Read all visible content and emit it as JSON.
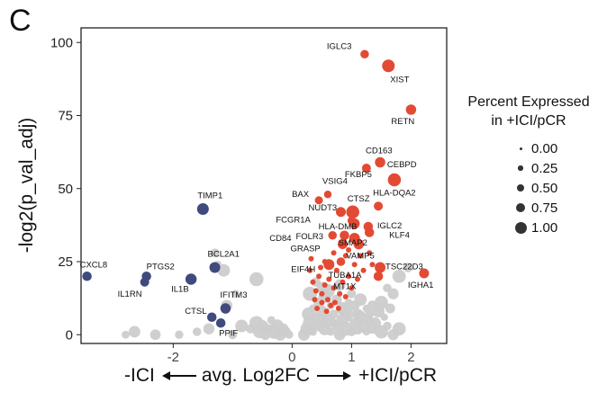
{
  "panel_letter": "C",
  "chart_data": {
    "type": "scatter",
    "title": "",
    "xlabel_left": "-ICI",
    "xlabel_center": "avg. Log2FC",
    "xlabel_right": "+ICI/pCR",
    "ylabel": "-log2(p_val_adj)",
    "xlim": [
      -3.55,
      2.6
    ],
    "ylim": [
      -3,
      105
    ],
    "x_ticks": [
      -2,
      0,
      1,
      2
    ],
    "x_tick_labels": [
      "-2",
      "0",
      "1",
      "2"
    ],
    "y_ticks": [
      0,
      25,
      50,
      75,
      100
    ],
    "y_tick_labels": [
      "0",
      "25",
      "50",
      "75",
      "100"
    ],
    "grid": false,
    "legend_placement": "right",
    "legend": {
      "title_line1": "Percent Expressed",
      "title_line2": "in +ICI/pCR",
      "items": [
        {
          "label": "0.00",
          "size": 0.0
        },
        {
          "label": "0.25",
          "size": 0.25
        },
        {
          "label": "0.50",
          "size": 0.5
        },
        {
          "label": "0.75",
          "size": 0.75
        },
        {
          "label": "1.00",
          "size": 1.0
        }
      ]
    },
    "colors": {
      "up": "#e34a33",
      "down": "#3f4a7e",
      "ns": "#cccccc",
      "text": "#111111"
    },
    "labeled_genes": [
      {
        "gene": "IGLC3",
        "x": 1.22,
        "y": 96,
        "pct": 0.35,
        "group": "up"
      },
      {
        "gene": "XIST",
        "x": 1.62,
        "y": 92,
        "pct": 0.8,
        "group": "up"
      },
      {
        "gene": "RETN",
        "x": 2.0,
        "y": 77,
        "pct": 0.55,
        "group": "up"
      },
      {
        "gene": "CD163",
        "x": 1.48,
        "y": 59,
        "pct": 0.55,
        "group": "up"
      },
      {
        "gene": "FKBP5",
        "x": 1.25,
        "y": 57,
        "pct": 0.4,
        "group": "up"
      },
      {
        "gene": "CEBPD",
        "x": 1.72,
        "y": 53,
        "pct": 0.85,
        "group": "up"
      },
      {
        "gene": "VSIG4",
        "x": 0.6,
        "y": 48,
        "pct": 0.25,
        "group": "up"
      },
      {
        "gene": "BAX",
        "x": 0.45,
        "y": 46,
        "pct": 0.3,
        "group": "up"
      },
      {
        "gene": "HLA-DQA2",
        "x": 1.45,
        "y": 44,
        "pct": 0.4,
        "group": "up"
      },
      {
        "gene": "NUDT3",
        "x": 0.82,
        "y": 42,
        "pct": 0.5,
        "group": "up"
      },
      {
        "gene": "CTSZ",
        "x": 1.02,
        "y": 42,
        "pct": 0.85,
        "group": "up"
      },
      {
        "gene": "FCGR1A",
        "x": 1.0,
        "y": 39,
        "pct": 0.3,
        "group": "up"
      },
      {
        "gene": "HLA-DMB",
        "x": 1.05,
        "y": 38,
        "pct": 0.55,
        "group": "up"
      },
      {
        "gene": "IGLC2",
        "x": 1.28,
        "y": 37,
        "pct": 0.45,
        "group": "up"
      },
      {
        "gene": "CD84",
        "x": 0.68,
        "y": 34,
        "pct": 0.35,
        "group": "up"
      },
      {
        "gene": "FOLR3",
        "x": 0.88,
        "y": 34,
        "pct": 0.45,
        "group": "up"
      },
      {
        "gene": "KLF4",
        "x": 1.3,
        "y": 35,
        "pct": 0.45,
        "group": "up"
      },
      {
        "gene": "SMAP2",
        "x": 1.05,
        "y": 33,
        "pct": 0.6,
        "group": "up"
      },
      {
        "gene": "GRASP",
        "x": 0.85,
        "y": 31,
        "pct": 0.5,
        "group": "up"
      },
      {
        "gene": "VAMP5",
        "x": 1.12,
        "y": 31,
        "pct": 0.55,
        "group": "up"
      },
      {
        "gene": "EIF4H",
        "x": 0.62,
        "y": 24,
        "pct": 0.6,
        "group": "up"
      },
      {
        "gene": "TUBA1A",
        "x": 0.82,
        "y": 25,
        "pct": 0.35,
        "group": "up"
      },
      {
        "gene": "TSC22D3",
        "x": 1.48,
        "y": 23,
        "pct": 0.6,
        "group": "up"
      },
      {
        "gene": "IGHA1",
        "x": 2.22,
        "y": 21,
        "pct": 0.5,
        "group": "up"
      },
      {
        "gene": "MT1X",
        "x": 1.45,
        "y": 20,
        "pct": 0.45,
        "group": "up"
      },
      {
        "gene": "TIMP1",
        "x": -1.5,
        "y": 43,
        "pct": 0.7,
        "group": "down"
      },
      {
        "gene": "BCL2A1",
        "x": -1.3,
        "y": 23,
        "pct": 0.6,
        "group": "down"
      },
      {
        "gene": "PTGS2",
        "x": -2.45,
        "y": 20,
        "pct": 0.45,
        "group": "down"
      },
      {
        "gene": "IL1RN",
        "x": -2.48,
        "y": 18,
        "pct": 0.4,
        "group": "down"
      },
      {
        "gene": "IL1B",
        "x": -1.7,
        "y": 19,
        "pct": 0.65,
        "group": "down"
      },
      {
        "gene": "CXCL8",
        "x": -3.45,
        "y": 20,
        "pct": 0.45,
        "group": "down"
      },
      {
        "gene": "IFITM3",
        "x": -1.12,
        "y": 9,
        "pct": 0.55,
        "group": "down"
      },
      {
        "gene": "CTSL",
        "x": -1.35,
        "y": 6,
        "pct": 0.45,
        "group": "down"
      },
      {
        "gene": "PPIF",
        "x": -1.2,
        "y": 4,
        "pct": 0.45,
        "group": "down"
      }
    ],
    "unlabeled_up": [
      [
        0.3,
        22
      ],
      [
        0.35,
        18
      ],
      [
        0.4,
        15
      ],
      [
        0.45,
        20
      ],
      [
        0.5,
        14
      ],
      [
        0.55,
        17
      ],
      [
        0.6,
        12
      ],
      [
        0.62,
        19
      ],
      [
        0.7,
        16
      ],
      [
        0.72,
        11
      ],
      [
        0.75,
        22
      ],
      [
        0.8,
        14
      ],
      [
        0.85,
        18
      ],
      [
        0.9,
        13
      ],
      [
        0.95,
        20
      ],
      [
        1.0,
        16
      ],
      [
        1.05,
        24
      ],
      [
        1.1,
        19
      ],
      [
        1.15,
        27
      ],
      [
        1.2,
        22
      ],
      [
        0.38,
        12
      ],
      [
        0.42,
        9
      ],
      [
        0.5,
        11
      ],
      [
        0.58,
        8
      ],
      [
        0.65,
        10
      ],
      [
        0.78,
        9
      ],
      [
        0.9,
        27
      ],
      [
        0.95,
        29
      ],
      [
        0.7,
        28
      ],
      [
        1.3,
        28
      ],
      [
        1.35,
        24
      ],
      [
        0.32,
        26
      ],
      [
        0.55,
        25
      ],
      [
        0.48,
        23
      ]
    ],
    "unlabeled_ns": [
      [
        -2.8,
        0
      ],
      [
        -2.65,
        1
      ],
      [
        -2.3,
        0
      ],
      [
        -1.9,
        0
      ],
      [
        -1.6,
        1
      ],
      [
        -1.4,
        2
      ],
      [
        -1.3,
        28
      ],
      [
        -1.25,
        24
      ],
      [
        -1.1,
        10
      ],
      [
        -1.0,
        0
      ],
      [
        -0.85,
        3
      ],
      [
        -0.7,
        2
      ],
      [
        -0.6,
        4
      ],
      [
        -0.55,
        1
      ],
      [
        -0.5,
        3
      ],
      [
        -0.45,
        0
      ],
      [
        -0.4,
        2
      ],
      [
        -0.35,
        5
      ],
      [
        -0.3,
        1
      ],
      [
        -0.25,
        3
      ],
      [
        -0.2,
        0
      ],
      [
        -0.15,
        2
      ],
      [
        -0.1,
        1
      ],
      [
        -0.05,
        0
      ],
      [
        -0.6,
        19
      ],
      [
        -1.15,
        22
      ],
      [
        -0.95,
        14
      ],
      [
        0.2,
        0
      ],
      [
        0.25,
        2
      ],
      [
        0.3,
        4
      ],
      [
        0.35,
        1
      ],
      [
        0.4,
        6
      ],
      [
        0.45,
        3
      ],
      [
        0.5,
        8
      ],
      [
        0.55,
        2
      ],
      [
        0.6,
        5
      ],
      [
        0.65,
        1
      ],
      [
        0.7,
        7
      ],
      [
        0.75,
        3
      ],
      [
        0.8,
        0
      ],
      [
        0.85,
        5
      ],
      [
        0.9,
        2
      ],
      [
        0.95,
        6
      ],
      [
        1.0,
        1
      ],
      [
        1.05,
        4
      ],
      [
        1.1,
        2
      ],
      [
        1.15,
        6
      ],
      [
        1.2,
        3
      ],
      [
        1.25,
        1
      ],
      [
        1.3,
        5
      ],
      [
        1.35,
        2
      ],
      [
        1.4,
        4
      ],
      [
        1.5,
        1
      ],
      [
        1.6,
        3
      ],
      [
        1.7,
        0
      ],
      [
        1.8,
        2
      ],
      [
        0.35,
        9
      ],
      [
        0.45,
        11
      ],
      [
        0.55,
        13
      ],
      [
        0.65,
        10
      ],
      [
        0.75,
        12
      ],
      [
        0.85,
        9
      ],
      [
        0.95,
        11
      ],
      [
        1.05,
        10
      ],
      [
        1.15,
        12
      ],
      [
        1.25,
        9
      ],
      [
        1.35,
        10
      ],
      [
        1.45,
        8
      ],
      [
        1.55,
        6
      ],
      [
        1.65,
        9
      ],
      [
        1.7,
        14
      ],
      [
        1.8,
        20
      ],
      [
        1.95,
        23
      ],
      [
        1.6,
        16
      ],
      [
        0.3,
        14
      ],
      [
        0.6,
        15
      ],
      [
        0.8,
        17
      ],
      [
        1.0,
        14
      ],
      [
        0.28,
        7
      ],
      [
        0.5,
        5
      ],
      [
        0.7,
        4
      ],
      [
        0.9,
        8
      ],
      [
        1.1,
        7
      ],
      [
        1.3,
        7
      ],
      [
        1.5,
        11
      ],
      [
        0.4,
        18
      ],
      [
        0.52,
        16
      ]
    ]
  }
}
